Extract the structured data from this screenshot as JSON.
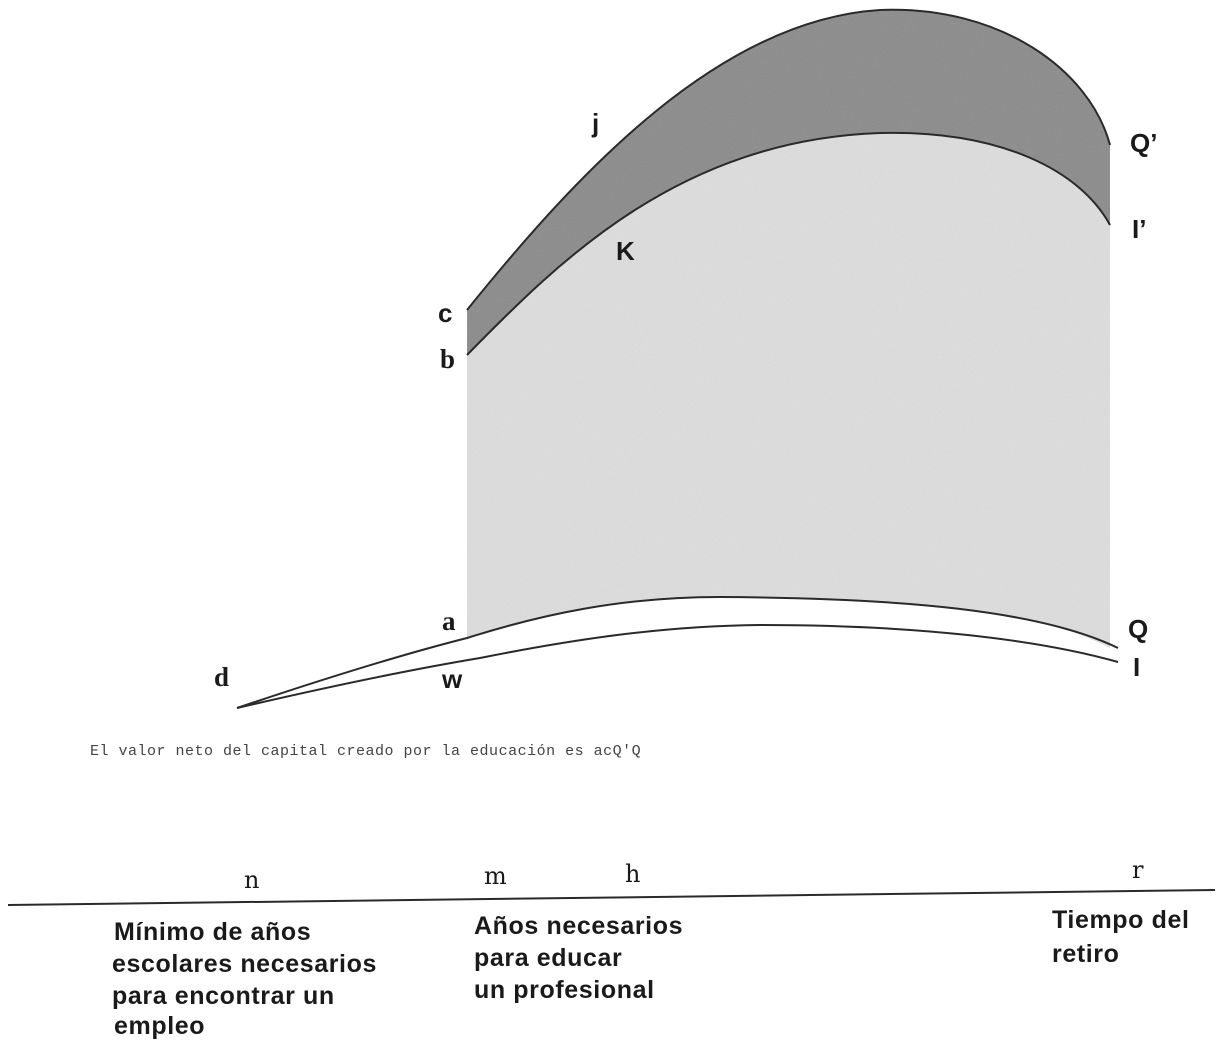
{
  "points": {
    "c": "c",
    "b": "b",
    "j": "j",
    "K": "K",
    "Q_prime": "Q’",
    "I_prime": "I’",
    "a": "a",
    "d": "d",
    "w": "w",
    "Q": "Q",
    "I": "I"
  },
  "caption": "El valor neto del capital creado por la educación es acQ'Q",
  "axis": {
    "ticks": [
      "n",
      "m",
      "h",
      "r"
    ],
    "notes": {
      "n": [
        "Mínimo de años",
        "escolares necesarios",
        "para encontrar un",
        "empleo"
      ],
      "m": [
        "Años necesarios",
        "para educar",
        "un profesional"
      ],
      "r": [
        "Tiempo del",
        "retiro"
      ]
    }
  },
  "colors": {
    "dark_band": "#8a8a8a",
    "light_area": "#dedede",
    "line": "#2a2a2a"
  }
}
